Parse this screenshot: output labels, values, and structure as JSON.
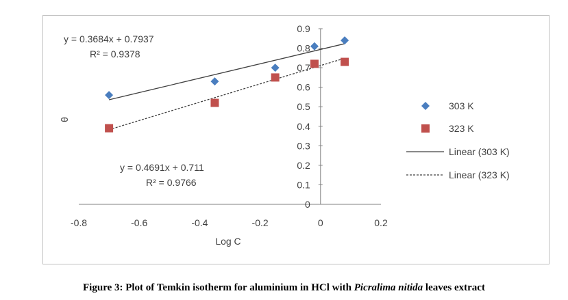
{
  "chart_data": {
    "type": "scatter",
    "xlabel": "Log C",
    "ylabel": "θ",
    "xlim": [
      -0.8,
      0.2
    ],
    "ylim": [
      0,
      0.9
    ],
    "xticks": [
      "-0.8",
      "-0.6",
      "-0.4",
      "-0.2",
      "0",
      "0.2"
    ],
    "yticks": [
      "0",
      "0.1",
      "0.2",
      "0.3",
      "0.4",
      "0.5",
      "0.6",
      "0.7",
      "0.8",
      "0.9"
    ],
    "grid": false,
    "legend_position": "right",
    "series": [
      {
        "name": "303 K",
        "marker": "diamond",
        "color": "#4a7ebf",
        "x": [
          -0.7,
          -0.35,
          -0.15,
          -0.02,
          0.08
        ],
        "y": [
          0.56,
          0.63,
          0.7,
          0.81,
          0.84
        ]
      },
      {
        "name": "323 K",
        "marker": "square",
        "color": "#c0504d",
        "x": [
          -0.7,
          -0.35,
          -0.15,
          -0.02,
          0.08
        ],
        "y": [
          0.39,
          0.52,
          0.65,
          0.72,
          0.73
        ]
      }
    ],
    "trendlines": [
      {
        "name": "Linear (303 K)",
        "style": "solid",
        "color": "#404040",
        "slope": 0.3684,
        "intercept": 0.7937,
        "x_range": [
          -0.7,
          0.08
        ],
        "equation": "y = 0.3684x + 0.7937",
        "r2": "R² = 0.9378"
      },
      {
        "name": "Linear (323 K)",
        "style": "dashed",
        "color": "#404040",
        "slope": 0.4691,
        "intercept": 0.711,
        "x_range": [
          -0.7,
          0.08
        ],
        "equation": "y = 0.4691x + 0.711",
        "r2": "R² = 0.9766"
      }
    ]
  },
  "caption": {
    "prefix": "Figure 3: Plot of Temkin isotherm for aluminium in HCl with ",
    "italic": "Picralima nitida",
    "suffix": " leaves extract"
  }
}
